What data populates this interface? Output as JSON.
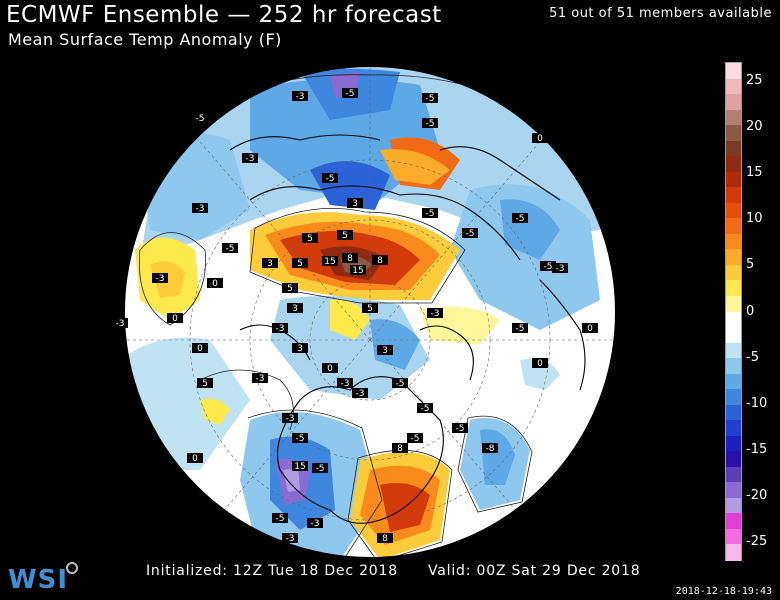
{
  "header": {
    "title": "ECMWF Ensemble — 252 hr forecast",
    "subtitle": "Mean Surface Temp Anomaly (F)",
    "members": "51 out of 51 members available"
  },
  "footer": {
    "initialized": "Initialized: 12Z Tue 18 Dec 2018",
    "valid": "Valid: 00Z Sat 29 Dec 2018",
    "timestamp": "2018-12-18-19:43"
  },
  "branding": {
    "logo_text": "WSI"
  },
  "colorbar": {
    "unit": "F",
    "ticks": [
      25,
      20,
      15,
      10,
      5,
      0,
      -5,
      -10,
      -15,
      -20,
      -25
    ],
    "tick_labels": [
      "25",
      "20",
      "15",
      "10",
      "5",
      "0",
      "-5",
      "-10",
      "-15",
      "-20",
      "-25"
    ],
    "colors": [
      "#fbdde3",
      "#f2b9b9",
      "#e0a0a0",
      "#b08070",
      "#8a5a42",
      "#7a3b24",
      "#8e2a10",
      "#b12a0a",
      "#d23a0a",
      "#e84d10",
      "#f36a14",
      "#f98a1c",
      "#fbab2a",
      "#fccc3a",
      "#fde94c",
      "#fdf79a",
      "#ffffff",
      "#ffffff",
      "#bfe3f3",
      "#8ec8ee",
      "#5fa8e6",
      "#3f86df",
      "#2c62d8",
      "#1f3fcf",
      "#1d1fbf",
      "#2a10a8",
      "#5b3fb8",
      "#8a6bd2",
      "#b19ce2",
      "#e33fd6",
      "#f56be0",
      "#f7b8ea"
    ],
    "value_top": 27,
    "value_bottom": -27
  },
  "map": {
    "contour_labels": [
      "-5",
      "-5",
      "-5",
      "-3",
      "-3",
      "-5",
      "-5",
      "0",
      "-3",
      "-5",
      "5",
      "5",
      "8",
      "8",
      "15",
      "15",
      "5",
      "-3",
      "-5",
      "-5",
      "-3",
      "0",
      "0",
      "-3",
      "-3",
      "3",
      "3",
      "5",
      "0",
      "-3",
      "-3",
      "-5",
      "-5",
      "-5",
      "-5",
      "-5",
      "8",
      "8",
      "5",
      "-3",
      "-5",
      "-5",
      "-3",
      "0",
      "-5",
      "-8",
      "-3",
      "-3",
      "15",
      "-5",
      "-5",
      "3",
      "3",
      "0",
      "0",
      "0",
      "-3",
      "3",
      "5"
    ]
  }
}
